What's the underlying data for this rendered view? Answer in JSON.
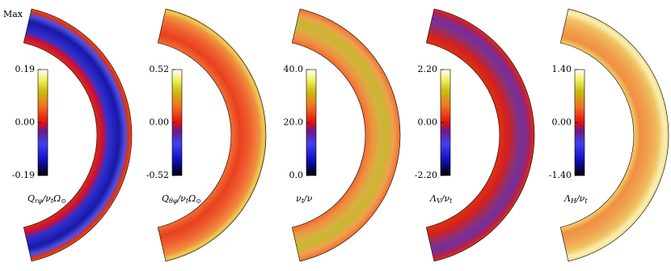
{
  "corner_label": "Max",
  "panels": [
    {
      "label": [
        {
          "text": "Q"
        },
        {
          "text": "rφ",
          "sub": true
        },
        {
          "text": "/ν"
        },
        {
          "text": "t",
          "sub": true
        },
        {
          "text": "Ω"
        },
        {
          "text": "⊙",
          "sub": true
        }
      ],
      "colorbar_ticks": [
        -0.19,
        {
          "value": 0,
          "label": "0.00"
        },
        0.19
      ]
    },
    {
      "label": [
        {
          "text": "Q"
        },
        {
          "text": "θφ",
          "sub": true
        },
        {
          "text": "/ν"
        },
        {
          "text": "t",
          "sub": true
        },
        {
          "text": "Ω"
        },
        {
          "text": "⊙",
          "sub": true
        }
      ],
      "colorbar_ticks": [
        -0.52,
        {
          "value": 0,
          "label": "0.00"
        },
        0.52
      ]
    },
    {
      "label": [
        {
          "text": "ν"
        },
        {
          "text": "t",
          "sub": true
        },
        {
          "text": "/ν"
        }
      ],
      "colorbar_ticks": [
        {
          "value": 0,
          "label": "0.0"
        },
        {
          "value": 20,
          "label": "20.0"
        },
        {
          "value": 40,
          "label": "40.0"
        }
      ]
    },
    {
      "label": [
        {
          "text": "Λ"
        },
        {
          "text": "V",
          "sub": true
        },
        {
          "text": "/ν"
        },
        {
          "text": "t",
          "sub": true
        }
      ],
      "colorbar_ticks": [
        {
          "value": -2.2,
          "label": "-2.20"
        },
        {
          "value": 0,
          "label": "0.00"
        },
        {
          "value": 2.2,
          "label": "2.20"
        }
      ]
    },
    {
      "label": [
        {
          "text": "Λ"
        },
        {
          "text": "H",
          "sub": true
        },
        {
          "text": "/ν"
        },
        {
          "text": "t",
          "sub": true
        }
      ],
      "colorbar_ticks": [
        {
          "value": -1.4,
          "label": "-1.40"
        },
        {
          "value": 0,
          "label": "0.00"
        },
        {
          "value": 1.4,
          "label": "1.40"
        }
      ]
    }
  ]
}
